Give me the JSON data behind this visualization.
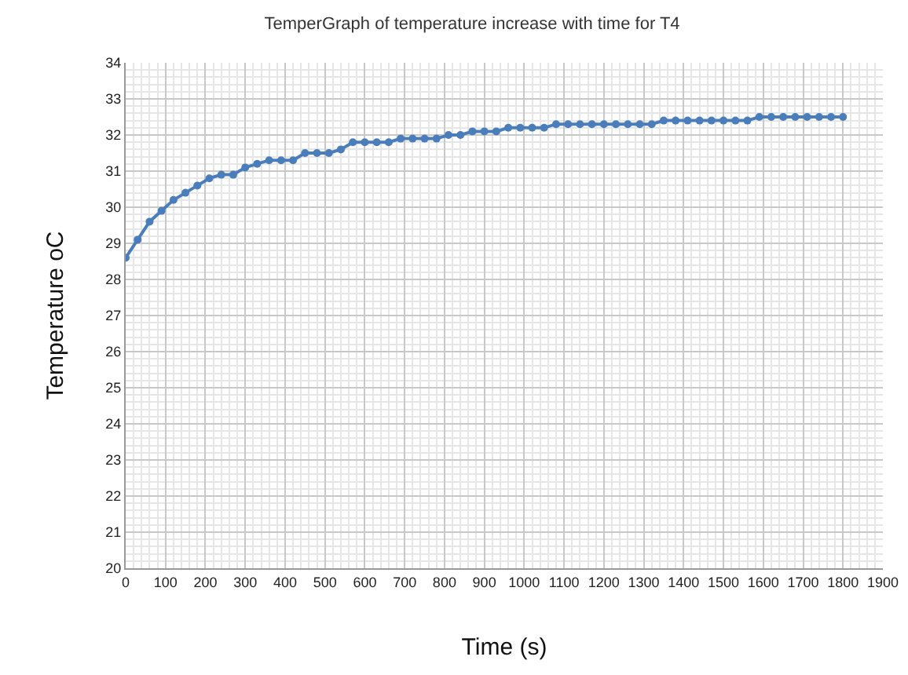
{
  "chart_data": {
    "type": "line",
    "title": "TemperGraph of temperature increase with time for T4",
    "xlabel": "Time (s)",
    "ylabel": "Temperature oC",
    "x": [
      0,
      30,
      60,
      90,
      120,
      150,
      180,
      210,
      240,
      270,
      300,
      330,
      360,
      390,
      420,
      450,
      480,
      510,
      540,
      570,
      600,
      630,
      660,
      690,
      720,
      750,
      780,
      810,
      840,
      870,
      900,
      930,
      960,
      990,
      1020,
      1050,
      1080,
      1110,
      1140,
      1170,
      1200,
      1230,
      1260,
      1290,
      1320,
      1350,
      1380,
      1410,
      1440,
      1470,
      1500,
      1530,
      1560,
      1590,
      1620,
      1650,
      1680,
      1710,
      1740,
      1770,
      1800
    ],
    "series": [
      {
        "color": "#4a7ebb",
        "values": [
          28.6,
          29.1,
          29.6,
          29.9,
          30.2,
          30.4,
          30.6,
          30.8,
          30.9,
          30.9,
          31.1,
          31.2,
          31.3,
          31.3,
          31.3,
          31.5,
          31.5,
          31.5,
          31.6,
          31.8,
          31.8,
          31.8,
          31.8,
          31.9,
          31.9,
          31.9,
          31.9,
          32.0,
          32.0,
          32.1,
          32.1,
          32.1,
          32.2,
          32.2,
          32.2,
          32.2,
          32.3,
          32.3,
          32.3,
          32.3,
          32.3,
          32.3,
          32.3,
          32.3,
          32.3,
          32.4,
          32.4,
          32.4,
          32.4,
          32.4,
          32.4,
          32.4,
          32.4,
          32.5,
          32.5,
          32.5,
          32.5,
          32.5,
          32.5,
          32.5,
          32.5
        ]
      }
    ],
    "xlim": [
      0,
      1900
    ],
    "xticks": [
      0,
      100,
      200,
      300,
      400,
      500,
      600,
      700,
      800,
      900,
      1000,
      1100,
      1200,
      1300,
      1400,
      1500,
      1600,
      1700,
      1800,
      1900
    ],
    "ylim": [
      20,
      34
    ],
    "yticks": [
      20,
      21,
      22,
      23,
      24,
      25,
      26,
      27,
      28,
      29,
      30,
      31,
      32,
      33,
      34
    ],
    "grid": true,
    "marker": "circle",
    "line_style": "solid"
  }
}
